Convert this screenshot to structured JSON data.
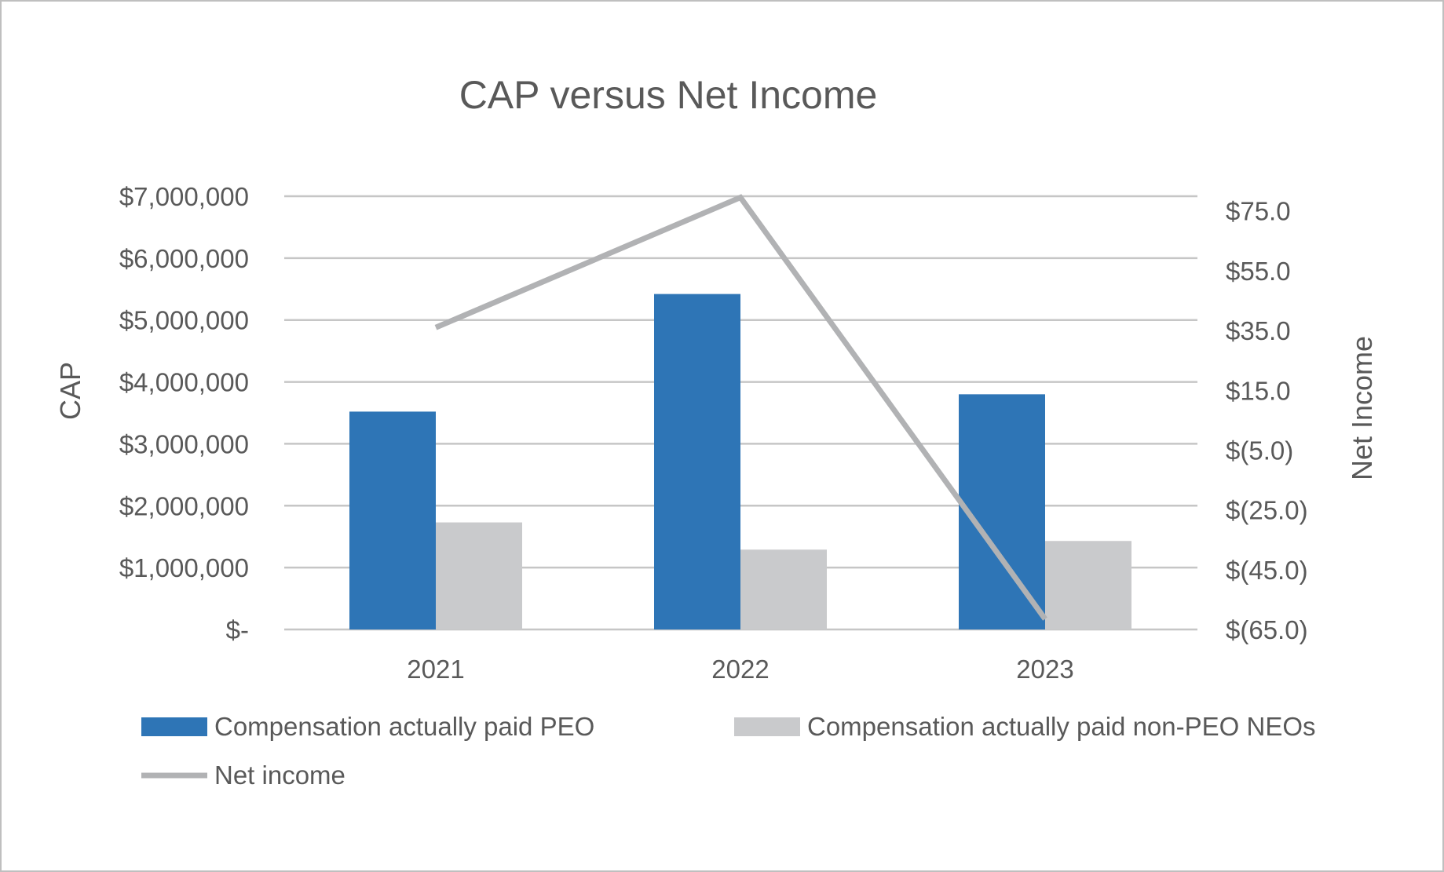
{
  "chart_data": {
    "type": "bar",
    "title": "CAP versus Net Income",
    "categories": [
      "2021",
      "2022",
      "2023"
    ],
    "series": [
      {
        "name": "Compensation actually paid PEO",
        "kind": "bar",
        "axis": "left",
        "color": "#2e75b6",
        "values": [
          3520000,
          5420000,
          3800000
        ]
      },
      {
        "name": "Compensation actually paid non-PEO NEOs",
        "kind": "bar",
        "axis": "left",
        "color": "#c9cacc",
        "values": [
          1730000,
          1290000,
          1430000
        ]
      },
      {
        "name": "Net income",
        "kind": "line",
        "axis": "right",
        "color": "#b1b2b4",
        "values": [
          36,
          79.5,
          -61.5
        ]
      }
    ],
    "left_axis": {
      "label": "CAP",
      "ylim": [
        0,
        7000000
      ],
      "ticks": [
        0,
        1000000,
        2000000,
        3000000,
        4000000,
        5000000,
        6000000,
        7000000
      ],
      "tick_labels": [
        "$-",
        "$1,000,000",
        "$2,000,000",
        "$3,000,000",
        "$4,000,000",
        "$5,000,000",
        "$6,000,000",
        "$7,000,000"
      ]
    },
    "right_axis": {
      "label": "Net Income",
      "ylim": [
        -65,
        85
      ],
      "ticks": [
        -65,
        -45,
        -25,
        -5,
        15,
        35,
        55,
        75
      ],
      "tick_labels": [
        "$(65.0)",
        "$(45.0)",
        "$(25.0)",
        "$(5.0)",
        "$15.0",
        "$35.0",
        "$55.0",
        "$75.0"
      ]
    },
    "grid": true,
    "legend_position": "bottom"
  }
}
